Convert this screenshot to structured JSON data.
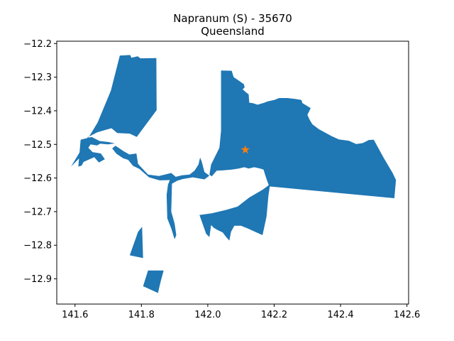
{
  "chart_data": {
    "type": "map",
    "title": "Napranum (S) - 35670",
    "subtitle": "Queensland",
    "xlabel": "",
    "ylabel": "",
    "xlim": [
      141.545,
      142.605
    ],
    "ylim": [
      -12.975,
      -12.193
    ],
    "x_ticks": [
      141.6,
      141.8,
      142.0,
      142.2,
      142.4,
      142.6
    ],
    "y_ticks": [
      -12.2,
      -12.3,
      -12.4,
      -12.5,
      -12.6,
      -12.7,
      -12.8,
      -12.9
    ],
    "x_tick_labels": [
      "141.6",
      "141.8",
      "142.0",
      "142.2",
      "142.4",
      "142.6"
    ],
    "y_tick_labels": [
      "−12.2",
      "−12.3",
      "−12.4",
      "−12.5",
      "−12.6",
      "−12.7",
      "−12.8",
      "−12.9"
    ],
    "grid": false,
    "fill_color": "#1f77b4",
    "marker_color": "#ff7f0e",
    "marker": {
      "lon": 142.113,
      "lat": -12.516,
      "shape": "star"
    },
    "polygons": [
      {
        "name": "north-west",
        "points": [
          [
            141.588,
            -12.566
          ],
          [
            141.668,
            -12.435
          ],
          [
            141.708,
            -12.34
          ],
          [
            141.735,
            -12.236
          ],
          [
            141.766,
            -12.234
          ],
          [
            141.77,
            -12.242
          ],
          [
            141.789,
            -12.238
          ],
          [
            141.797,
            -12.244
          ],
          [
            141.845,
            -12.243
          ],
          [
            141.846,
            -12.398
          ],
          [
            141.786,
            -12.478
          ],
          [
            141.765,
            -12.468
          ],
          [
            141.727,
            -12.466
          ],
          [
            141.71,
            -12.452
          ],
          [
            141.688,
            -12.458
          ],
          [
            141.667,
            -12.464
          ],
          [
            141.638,
            -12.479
          ],
          [
            141.627,
            -12.515
          ],
          [
            141.618,
            -12.536
          ]
        ]
      },
      {
        "name": "west-lower",
        "points": [
          [
            141.61,
            -12.566
          ],
          [
            141.617,
            -12.486
          ],
          [
            141.65,
            -12.478
          ],
          [
            141.674,
            -12.49
          ],
          [
            141.7,
            -12.493
          ],
          [
            141.72,
            -12.497
          ],
          [
            141.7,
            -12.5
          ],
          [
            141.676,
            -12.498
          ],
          [
            141.666,
            -12.503
          ],
          [
            141.647,
            -12.5
          ],
          [
            141.64,
            -12.51
          ],
          [
            141.653,
            -12.523
          ],
          [
            141.678,
            -12.527
          ],
          [
            141.69,
            -12.544
          ],
          [
            141.672,
            -12.554
          ],
          [
            141.658,
            -12.538
          ],
          [
            141.626,
            -12.552
          ],
          [
            141.62,
            -12.563
          ]
        ]
      },
      {
        "name": "channel-spit",
        "points": [
          [
            141.712,
            -12.512
          ],
          [
            141.722,
            -12.504
          ],
          [
            141.746,
            -12.52
          ],
          [
            141.764,
            -12.53
          ],
          [
            141.785,
            -12.527
          ],
          [
            141.79,
            -12.558
          ],
          [
            141.82,
            -12.59
          ],
          [
            141.853,
            -12.594
          ],
          [
            141.89,
            -12.585
          ],
          [
            141.905,
            -12.598
          ],
          [
            141.895,
            -12.606
          ],
          [
            141.855,
            -12.607
          ],
          [
            141.823,
            -12.598
          ],
          [
            141.794,
            -12.573
          ],
          [
            141.775,
            -12.564
          ],
          [
            141.76,
            -12.546
          ],
          [
            141.745,
            -12.541
          ],
          [
            141.725,
            -12.528
          ]
        ]
      },
      {
        "name": "river-bank",
        "points": [
          [
            141.888,
            -12.6
          ],
          [
            141.922,
            -12.592
          ],
          [
            141.945,
            -12.59
          ],
          [
            141.96,
            -12.578
          ],
          [
            141.972,
            -12.56
          ],
          [
            141.977,
            -12.539
          ],
          [
            141.982,
            -12.552
          ],
          [
            141.99,
            -12.582
          ],
          [
            142.005,
            -12.593
          ],
          [
            141.99,
            -12.604
          ],
          [
            141.955,
            -12.598
          ],
          [
            141.925,
            -12.603
          ],
          [
            141.908,
            -12.608
          ],
          [
            141.892,
            -12.617
          ],
          [
            141.89,
            -12.7
          ],
          [
            141.9,
            -12.735
          ],
          [
            141.905,
            -12.77
          ],
          [
            141.9,
            -12.782
          ],
          [
            141.89,
            -12.75
          ],
          [
            141.878,
            -12.72
          ],
          [
            141.876,
            -12.65
          ],
          [
            141.88,
            -12.62
          ]
        ]
      },
      {
        "name": "main-east",
        "points": [
          [
            142.04,
            -12.28
          ],
          [
            142.072,
            -12.281
          ],
          [
            142.078,
            -12.3
          ],
          [
            142.096,
            -12.312
          ],
          [
            142.109,
            -12.321
          ],
          [
            142.111,
            -12.331
          ],
          [
            142.105,
            -12.336
          ],
          [
            142.115,
            -12.345
          ],
          [
            142.123,
            -12.351
          ],
          [
            142.125,
            -12.376
          ],
          [
            142.135,
            -12.377
          ],
          [
            142.15,
            -12.382
          ],
          [
            142.17,
            -12.376
          ],
          [
            142.18,
            -12.372
          ],
          [
            142.2,
            -12.368
          ],
          [
            142.215,
            -12.362
          ],
          [
            142.24,
            -12.362
          ],
          [
            142.265,
            -12.365
          ],
          [
            142.282,
            -12.368
          ],
          [
            142.285,
            -12.377
          ],
          [
            142.298,
            -12.385
          ],
          [
            142.31,
            -12.392
          ],
          [
            142.3,
            -12.412
          ],
          [
            142.307,
            -12.427
          ],
          [
            142.315,
            -12.44
          ],
          [
            142.335,
            -12.455
          ],
          [
            142.35,
            -12.463
          ],
          [
            142.372,
            -12.475
          ],
          [
            142.395,
            -12.485
          ],
          [
            142.425,
            -12.489
          ],
          [
            142.447,
            -12.499
          ],
          [
            142.467,
            -12.496
          ],
          [
            142.485,
            -12.487
          ],
          [
            142.5,
            -12.486
          ],
          [
            142.53,
            -12.54
          ],
          [
            142.557,
            -12.585
          ],
          [
            142.567,
            -12.606
          ],
          [
            142.562,
            -12.66
          ],
          [
            142.185,
            -12.625
          ],
          [
            142.177,
            -12.603
          ],
          [
            142.172,
            -12.588
          ],
          [
            142.168,
            -12.575
          ],
          [
            142.158,
            -12.572
          ],
          [
            142.14,
            -12.568
          ],
          [
            142.123,
            -12.572
          ],
          [
            142.11,
            -12.568
          ],
          [
            142.093,
            -12.572
          ],
          [
            142.072,
            -12.575
          ],
          [
            142.047,
            -12.577
          ],
          [
            142.027,
            -12.578
          ],
          [
            142.012,
            -12.595
          ],
          [
            142.005,
            -12.59
          ],
          [
            142.01,
            -12.56
          ],
          [
            142.035,
            -12.51
          ],
          [
            142.04,
            -12.46
          ]
        ]
      },
      {
        "name": "south-east",
        "points": [
          [
            141.975,
            -12.71
          ],
          [
            142.012,
            -12.705
          ],
          [
            142.055,
            -12.695
          ],
          [
            142.09,
            -12.685
          ],
          [
            142.125,
            -12.658
          ],
          [
            142.165,
            -12.635
          ],
          [
            142.188,
            -12.618
          ],
          [
            142.183,
            -12.65
          ],
          [
            142.177,
            -12.715
          ],
          [
            142.165,
            -12.77
          ],
          [
            142.147,
            -12.762
          ],
          [
            142.12,
            -12.75
          ],
          [
            142.1,
            -12.742
          ],
          [
            142.08,
            -12.742
          ],
          [
            142.07,
            -12.76
          ],
          [
            142.065,
            -12.786
          ],
          [
            142.055,
            -12.775
          ],
          [
            142.045,
            -12.762
          ],
          [
            142.03,
            -12.755
          ],
          [
            142.018,
            -12.748
          ],
          [
            142.01,
            -12.74
          ],
          [
            142.005,
            -12.776
          ],
          [
            141.995,
            -12.766
          ]
        ]
      },
      {
        "name": "south-mid",
        "points": [
          [
            141.765,
            -12.83
          ],
          [
            141.79,
            -12.76
          ],
          [
            141.802,
            -12.745
          ],
          [
            141.805,
            -12.838
          ]
        ]
      },
      {
        "name": "south-tip",
        "points": [
          [
            141.805,
            -12.922
          ],
          [
            141.82,
            -12.875
          ],
          [
            141.867,
            -12.875
          ],
          [
            141.858,
            -12.908
          ],
          [
            141.85,
            -12.942
          ]
        ]
      }
    ]
  }
}
